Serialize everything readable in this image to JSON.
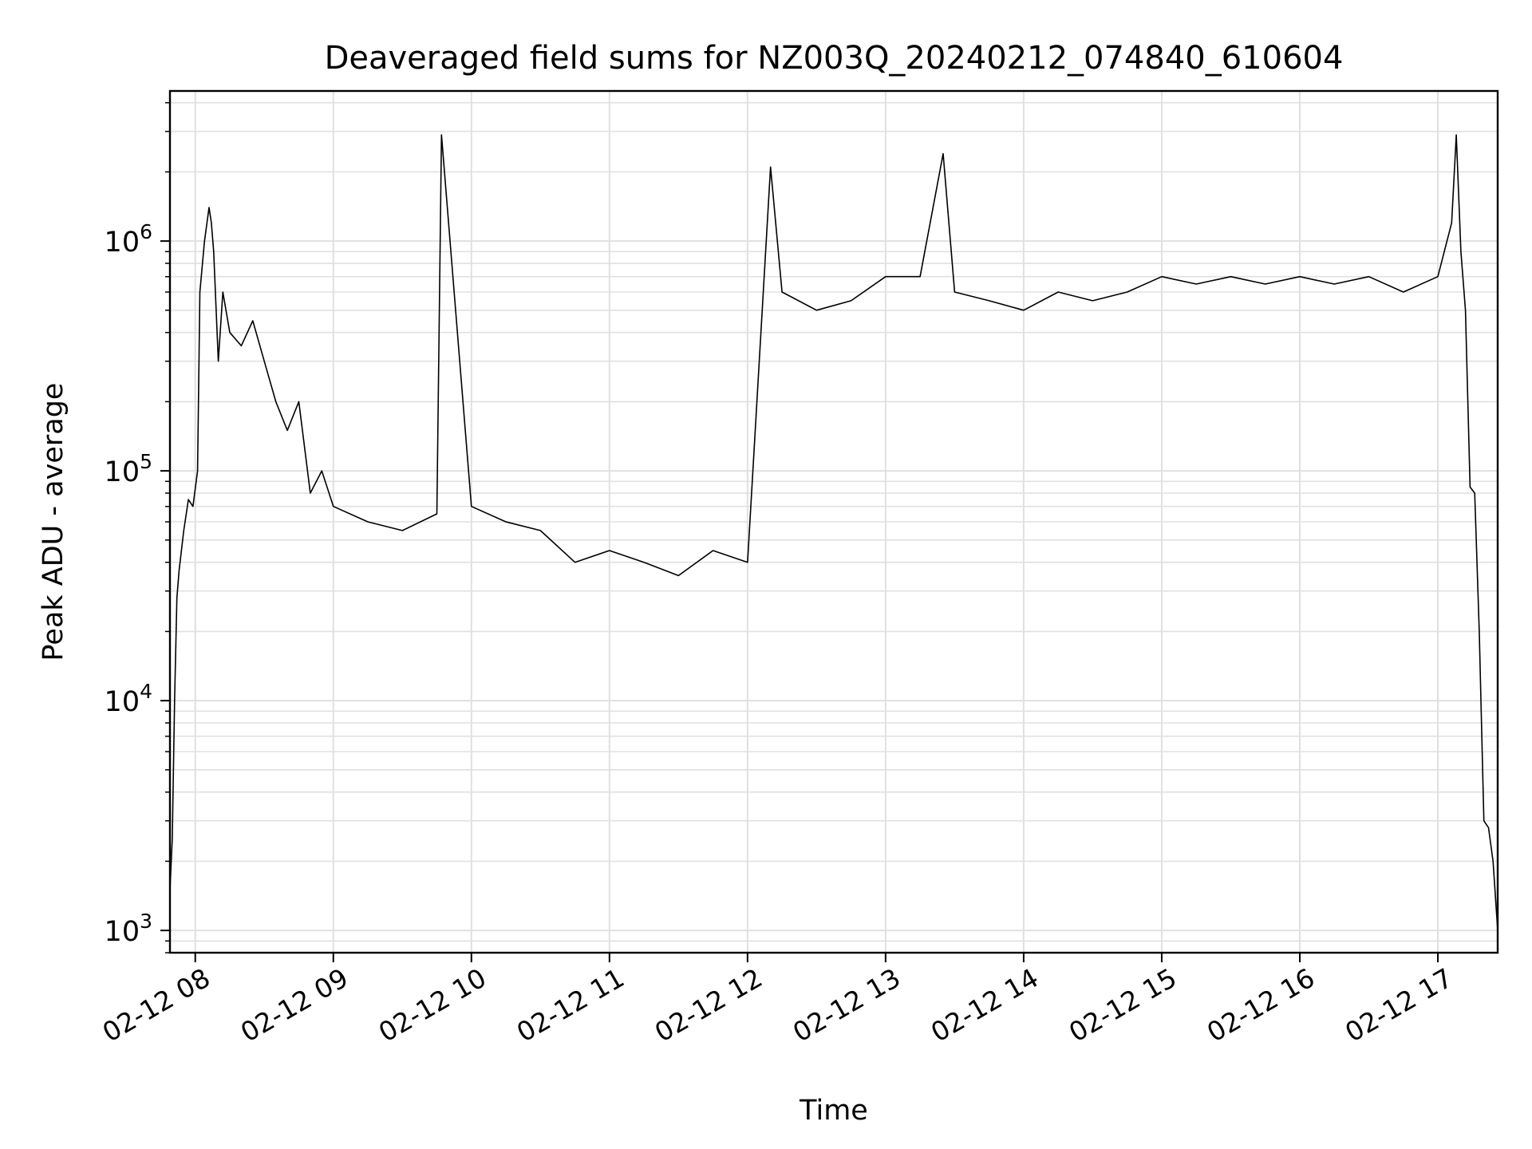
{
  "chart_data": {
    "type": "line",
    "title": "Deaveraged field sums for NZ003Q_20240212_074840_610604",
    "xlabel": "Time",
    "ylabel": "Peak ADU - average",
    "yscale": "log",
    "ylim": [
      800,
      4500000
    ],
    "xlim": [
      "2024-02-12 07:49",
      "2024-02-12 17:26"
    ],
    "grid": true,
    "line_color": "#000000",
    "grid_color": "#e0e0e0",
    "x_tick_labels": [
      "02-12 08",
      "02-12 09",
      "02-12 10",
      "02-12 11",
      "02-12 12",
      "02-12 13",
      "02-12 14",
      "02-12 15",
      "02-12 16",
      "02-12 17"
    ],
    "x_ticks": [
      "2024-02-12 08:00",
      "2024-02-12 09:00",
      "2024-02-12 10:00",
      "2024-02-12 11:00",
      "2024-02-12 12:00",
      "2024-02-12 13:00",
      "2024-02-12 14:00",
      "2024-02-12 15:00",
      "2024-02-12 16:00",
      "2024-02-12 17:00"
    ],
    "y_ticks": [
      {
        "value": 1000,
        "mantissa": "10",
        "exponent": "3"
      },
      {
        "value": 10000,
        "mantissa": "10",
        "exponent": "4"
      },
      {
        "value": 100000,
        "mantissa": "10",
        "exponent": "5"
      },
      {
        "value": 1000000,
        "mantissa": "10",
        "exponent": "6"
      }
    ],
    "series": [
      {
        "x": [
          "2024-02-12 07:49",
          "2024-02-12 07:50",
          "2024-02-12 07:51",
          "2024-02-12 07:52",
          "2024-02-12 07:53",
          "2024-02-12 07:55",
          "2024-02-12 07:57",
          "2024-02-12 07:59",
          "2024-02-12 08:01",
          "2024-02-12 08:02",
          "2024-02-12 08:04",
          "2024-02-12 08:06",
          "2024-02-12 08:07",
          "2024-02-12 08:08",
          "2024-02-12 08:10",
          "2024-02-12 08:12",
          "2024-02-12 08:15",
          "2024-02-12 08:20",
          "2024-02-12 08:25",
          "2024-02-12 08:30",
          "2024-02-12 08:35",
          "2024-02-12 08:40",
          "2024-02-12 08:45",
          "2024-02-12 08:50",
          "2024-02-12 08:55",
          "2024-02-12 09:00",
          "2024-02-12 09:15",
          "2024-02-12 09:30",
          "2024-02-12 09:45",
          "2024-02-12 09:47",
          "2024-02-12 10:00",
          "2024-02-12 10:15",
          "2024-02-12 10:30",
          "2024-02-12 10:45",
          "2024-02-12 11:00",
          "2024-02-12 11:15",
          "2024-02-12 11:30",
          "2024-02-12 11:45",
          "2024-02-12 12:00",
          "2024-02-12 12:10",
          "2024-02-12 12:15",
          "2024-02-12 12:30",
          "2024-02-12 12:45",
          "2024-02-12 13:00",
          "2024-02-12 13:15",
          "2024-02-12 13:25",
          "2024-02-12 13:30",
          "2024-02-12 13:45",
          "2024-02-12 14:00",
          "2024-02-12 14:15",
          "2024-02-12 14:30",
          "2024-02-12 14:45",
          "2024-02-12 15:00",
          "2024-02-12 15:15",
          "2024-02-12 15:30",
          "2024-02-12 15:45",
          "2024-02-12 16:00",
          "2024-02-12 16:15",
          "2024-02-12 16:30",
          "2024-02-12 16:45",
          "2024-02-12 17:00",
          "2024-02-12 17:06",
          "2024-02-12 17:08",
          "2024-02-12 17:10",
          "2024-02-12 17:12",
          "2024-02-12 17:14",
          "2024-02-12 17:16",
          "2024-02-12 17:18",
          "2024-02-12 17:20",
          "2024-02-12 17:22",
          "2024-02-12 17:24",
          "2024-02-12 17:26"
        ],
        "y": [
          1500,
          2500,
          10000,
          28000,
          37000,
          55000,
          75000,
          70000,
          100000,
          600000,
          1000000,
          1400000,
          1200000,
          900000,
          300000,
          600000,
          400000,
          350000,
          450000,
          300000,
          200000,
          150000,
          200000,
          80000,
          100000,
          70000,
          60000,
          55000,
          65000,
          2900000,
          70000,
          60000,
          55000,
          40000,
          45000,
          40000,
          35000,
          45000,
          40000,
          2100000,
          600000,
          500000,
          550000,
          700000,
          700000,
          2400000,
          600000,
          550000,
          500000,
          600000,
          550000,
          600000,
          700000,
          650000,
          700000,
          650000,
          700000,
          650000,
          700000,
          600000,
          700000,
          1200000,
          2900000,
          900000,
          500000,
          85000,
          80000,
          20000,
          3000,
          2800,
          2000,
          1000
        ]
      }
    ]
  }
}
